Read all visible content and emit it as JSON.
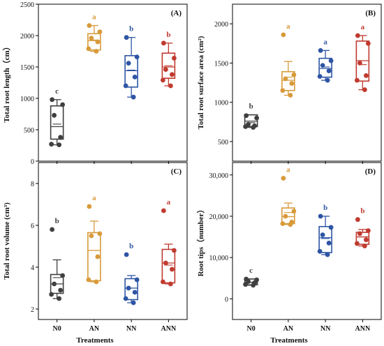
{
  "x_axis": {
    "categories": [
      "N0",
      "AN",
      "NN",
      "ANN"
    ],
    "label": "Treatments"
  },
  "colors": {
    "N0": "#3f3f3f",
    "AN": "#d89a3a",
    "NN": "#2e55a4",
    "ANN": "#c03a2f"
  },
  "chart_data": [
    {
      "type": "box",
      "panel_label": "(A)",
      "ylabel": "Total root length（cm）",
      "ylim": [
        0,
        2500
      ],
      "yticks": [
        0,
        500,
        1000,
        1500,
        2000,
        2500
      ],
      "ytick_labels": [
        "0",
        "500",
        "1000",
        "1500",
        "2000",
        "2500"
      ],
      "grid": false,
      "groups": [
        {
          "category": "N0",
          "points": [
            980,
            900,
            730,
            380,
            270,
            260
          ],
          "q1": 350,
          "q3": 880,
          "median": 550,
          "mean": 590,
          "whisker_low": 260,
          "whisker_high": 980,
          "letter": "c"
        },
        {
          "category": "AN",
          "points": [
            2160,
            2060,
            1960,
            1900,
            1790,
            1750
          ],
          "q1": 1770,
          "q3": 2030,
          "median": 1920,
          "mean": 1930,
          "whisker_low": 1750,
          "whisker_high": 2160,
          "letter": "a"
        },
        {
          "category": "NN",
          "points": [
            1970,
            1660,
            1560,
            1340,
            1200,
            1020
          ],
          "q1": 1180,
          "q3": 1680,
          "median": 1440,
          "mean": 1450,
          "whisker_low": 1020,
          "whisker_high": 1970,
          "letter": "b"
        },
        {
          "category": "ANN",
          "points": [
            1880,
            1640,
            1460,
            1380,
            1290,
            1200
          ],
          "q1": 1320,
          "q3": 1720,
          "median": 1500,
          "mean": 1520,
          "whisker_low": 1200,
          "whisker_high": 1880,
          "letter": "b"
        }
      ]
    },
    {
      "type": "box",
      "panel_label": "(B)",
      "ylabel": "Total root surface area (cm²)",
      "ylim": [
        250,
        2250
      ],
      "yticks": [
        500,
        1000,
        1500,
        2000
      ],
      "ytick_labels": [
        "500",
        "1000",
        "1500",
        "2000"
      ],
      "grid": false,
      "groups": [
        {
          "category": "N0",
          "points": [
            830,
            800,
            720,
            700,
            690,
            680
          ],
          "q1": 690,
          "q3": 840,
          "median": 760,
          "mean": 740,
          "whisker_low": 680,
          "whisker_high": 840,
          "letter": "b"
        },
        {
          "category": "AN",
          "points": [
            1860,
            1350,
            1300,
            1240,
            1150,
            1090
          ],
          "q1": 1150,
          "q3": 1390,
          "median": 1280,
          "mean": 1320,
          "whisker_low": 1090,
          "whisker_high": 1520,
          "letter": "a"
        },
        {
          "category": "NN",
          "points": [
            1660,
            1530,
            1470,
            1400,
            1330,
            1280
          ],
          "q1": 1320,
          "q3": 1560,
          "median": 1430,
          "mean": 1450,
          "whisker_low": 1280,
          "whisker_high": 1660,
          "letter": "a"
        },
        {
          "category": "ANN",
          "points": [
            1850,
            1750,
            1500,
            1340,
            1280,
            1160
          ],
          "q1": 1270,
          "q3": 1780,
          "median": 1530,
          "mean": 1480,
          "whisker_low": 1160,
          "whisker_high": 1850,
          "letter": "a"
        }
      ]
    },
    {
      "type": "box",
      "panel_label": "(C)",
      "ylabel": "Total root volume (cm³)",
      "ylim": [
        1.5,
        9
      ],
      "yticks": [
        2,
        4,
        6,
        8
      ],
      "ytick_labels": [
        "2",
        "4",
        "6",
        "8"
      ],
      "grid": false,
      "groups": [
        {
          "category": "N0",
          "points": [
            5.8,
            3.6,
            3.2,
            2.9,
            2.7,
            2.5
          ],
          "q1": 2.75,
          "q3": 3.65,
          "median": 3.2,
          "mean": 3.5,
          "whisker_low": 2.5,
          "whisker_high": 4.35,
          "letter": "b"
        },
        {
          "category": "AN",
          "points": [
            6.9,
            5.6,
            5.5,
            4.5,
            3.4,
            3.3
          ],
          "q1": 3.35,
          "q3": 5.65,
          "median": 4.8,
          "mean": 4.8,
          "whisker_low": 3.3,
          "whisker_high": 6.2,
          "letter": "a"
        },
        {
          "category": "NN",
          "points": [
            4.6,
            3.4,
            3.0,
            2.8,
            2.5,
            2.3
          ],
          "q1": 2.45,
          "q3": 3.45,
          "median": 3.0,
          "mean": 3.0,
          "whisker_low": 2.3,
          "whisker_high": 3.6,
          "letter": "b"
        },
        {
          "category": "ANN",
          "points": [
            6.7,
            4.8,
            4.2,
            3.9,
            3.3,
            3.2
          ],
          "q1": 3.25,
          "q3": 4.85,
          "median": 4.2,
          "mean": 4.1,
          "whisker_low": 3.2,
          "whisker_high": 5.1,
          "letter": "a"
        }
      ]
    },
    {
      "type": "box",
      "panel_label": "(D)",
      "ylabel": "Root tips（number）",
      "ylim": [
        -5000,
        33000
      ],
      "yticks": [
        0,
        10000,
        20000,
        30000
      ],
      "ytick_labels": [
        "0",
        "10,000",
        "20,000",
        "30,000"
      ],
      "grid": false,
      "groups": [
        {
          "category": "N0",
          "points": [
            4800,
            4600,
            4200,
            3900,
            3500,
            3300
          ],
          "q1": 3400,
          "q3": 4800,
          "median": 4000,
          "mean": 4000,
          "whisker_low": 3300,
          "whisker_high": 4800,
          "letter": "c"
        },
        {
          "category": "AN",
          "points": [
            29200,
            21200,
            20000,
            18600,
            18200,
            18000
          ],
          "q1": 18200,
          "q3": 22000,
          "median": 19900,
          "mean": 20900,
          "whisker_low": 18000,
          "whisker_high": 23200,
          "letter": "a"
        },
        {
          "category": "NN",
          "points": [
            20000,
            17300,
            15500,
            13500,
            11500,
            10700
          ],
          "q1": 11200,
          "q3": 17500,
          "median": 14800,
          "mean": 14600,
          "whisker_low": 10700,
          "whisker_high": 20000,
          "letter": "b"
        },
        {
          "category": "ANN",
          "points": [
            19200,
            16500,
            15800,
            14300,
            13400,
            12800
          ],
          "q1": 13200,
          "q3": 16100,
          "median": 15000,
          "mean": 15000,
          "whisker_low": 12800,
          "whisker_high": 16800,
          "letter": "b"
        }
      ]
    }
  ]
}
